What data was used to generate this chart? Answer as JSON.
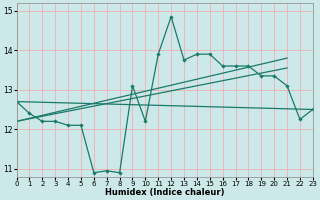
{
  "xlabel": "Humidex (Indice chaleur)",
  "bg_color": "#cce8e8",
  "grid_color": "#e8b8b8",
  "line_color": "#1a7a6a",
  "xlim": [
    0,
    23
  ],
  "ylim": [
    10.8,
    15.2
  ],
  "yticks": [
    11,
    12,
    13,
    14,
    15
  ],
  "xticks": [
    0,
    1,
    2,
    3,
    4,
    5,
    6,
    7,
    8,
    9,
    10,
    11,
    12,
    13,
    14,
    15,
    16,
    17,
    18,
    19,
    20,
    21,
    22,
    23
  ],
  "series_main": {
    "x": [
      0,
      1,
      2,
      3,
      4,
      5,
      6,
      7,
      8,
      9,
      10,
      11,
      12,
      13,
      14,
      15,
      16,
      17,
      18,
      19,
      20,
      21,
      22,
      23
    ],
    "y": [
      12.7,
      12.4,
      12.2,
      12.2,
      12.1,
      12.1,
      10.9,
      10.95,
      10.9,
      13.1,
      12.2,
      13.9,
      14.85,
      13.75,
      13.9,
      13.9,
      13.6,
      13.6,
      13.6,
      13.35,
      13.35,
      13.1,
      12.25,
      12.5
    ]
  },
  "series_trend1": {
    "x": [
      0,
      23
    ],
    "y": [
      12.7,
      12.5
    ]
  },
  "series_trend2": {
    "x": [
      0,
      21
    ],
    "y": [
      12.2,
      13.55
    ]
  },
  "series_trend3": {
    "x": [
      0,
      21
    ],
    "y": [
      12.2,
      13.8
    ]
  }
}
